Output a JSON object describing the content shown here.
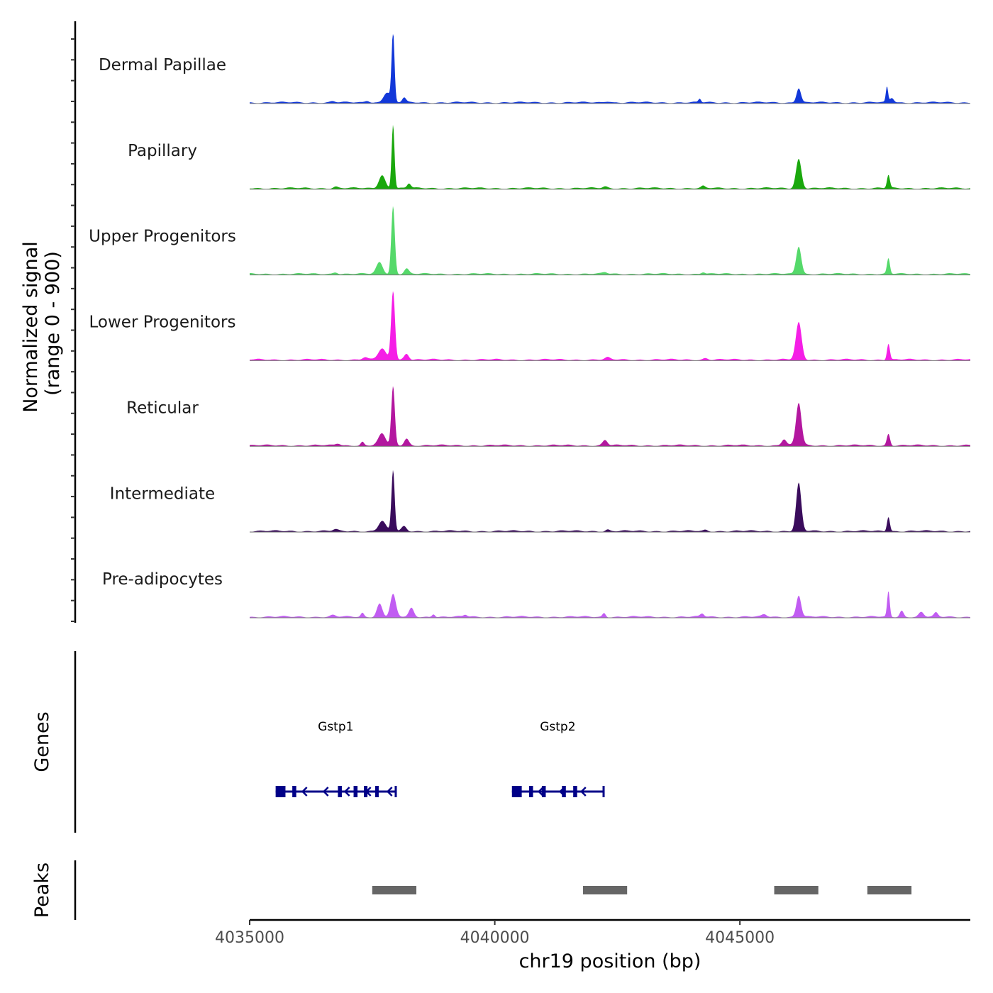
{
  "chart_data": {
    "type": "coverage-track",
    "chromosome": "chr19",
    "xlabel": "chr19 position (bp)",
    "xlim": [
      4035000,
      4049700
    ],
    "xticks": [
      4035000,
      4040000,
      4045000
    ],
    "tick_labels": [
      "4035000",
      "4040000",
      "4045000"
    ],
    "signal_panel": {
      "ylabel_line1": "Normalized signal",
      "ylabel_line2": "(range 0 - 900)",
      "ylim": [
        0,
        900
      ]
    },
    "tracks": [
      {
        "name": "Dermal Papillae",
        "color": "#1238d9",
        "peaks": [
          {
            "pos": 4037925,
            "height": 900,
            "width": 90
          },
          {
            "pos": 4037800,
            "height": 130,
            "width": 220
          },
          {
            "pos": 4038150,
            "height": 60,
            "width": 120
          },
          {
            "pos": 4037400,
            "height": 25,
            "width": 150
          },
          {
            "pos": 4036700,
            "height": 15,
            "width": 150
          },
          {
            "pos": 4044180,
            "height": 45,
            "width": 80
          },
          {
            "pos": 4042300,
            "height": 18,
            "width": 200
          },
          {
            "pos": 4046200,
            "height": 190,
            "width": 140
          },
          {
            "pos": 4048000,
            "height": 200,
            "width": 70
          },
          {
            "pos": 4048100,
            "height": 60,
            "width": 130
          }
        ]
      },
      {
        "name": "Papillary",
        "color": "#1aa80d",
        "peaks": [
          {
            "pos": 4037925,
            "height": 830,
            "width": 90
          },
          {
            "pos": 4037700,
            "height": 170,
            "width": 200
          },
          {
            "pos": 4038250,
            "height": 60,
            "width": 120
          },
          {
            "pos": 4036750,
            "height": 20,
            "width": 150
          },
          {
            "pos": 4042250,
            "height": 20,
            "width": 150
          },
          {
            "pos": 4044250,
            "height": 25,
            "width": 120
          },
          {
            "pos": 4046200,
            "height": 380,
            "width": 170
          },
          {
            "pos": 4048030,
            "height": 170,
            "width": 90
          }
        ]
      },
      {
        "name": "Upper Progenitors",
        "color": "#55d96a",
        "peaks": [
          {
            "pos": 4037925,
            "height": 880,
            "width": 110
          },
          {
            "pos": 4037650,
            "height": 150,
            "width": 200
          },
          {
            "pos": 4038200,
            "height": 70,
            "width": 150
          },
          {
            "pos": 4036750,
            "height": 25,
            "width": 150
          },
          {
            "pos": 4042250,
            "height": 20,
            "width": 150
          },
          {
            "pos": 4044250,
            "height": 25,
            "width": 120
          },
          {
            "pos": 4046200,
            "height": 360,
            "width": 160
          },
          {
            "pos": 4048030,
            "height": 200,
            "width": 90
          }
        ]
      },
      {
        "name": "Lower Progenitors",
        "color": "#f51ee6",
        "peaks": [
          {
            "pos": 4037925,
            "height": 900,
            "width": 120
          },
          {
            "pos": 4037700,
            "height": 140,
            "width": 240
          },
          {
            "pos": 4038200,
            "height": 80,
            "width": 150
          },
          {
            "pos": 4037350,
            "height": 30,
            "width": 150
          },
          {
            "pos": 4042300,
            "height": 25,
            "width": 150
          },
          {
            "pos": 4044300,
            "height": 20,
            "width": 150
          },
          {
            "pos": 4046200,
            "height": 480,
            "width": 180
          },
          {
            "pos": 4048030,
            "height": 210,
            "width": 90
          }
        ]
      },
      {
        "name": "Reticular",
        "color": "#b3179f",
        "peaks": [
          {
            "pos": 4037925,
            "height": 760,
            "width": 110
          },
          {
            "pos": 4037700,
            "height": 150,
            "width": 220
          },
          {
            "pos": 4038200,
            "height": 90,
            "width": 150
          },
          {
            "pos": 4037300,
            "height": 45,
            "width": 100
          },
          {
            "pos": 4036800,
            "height": 25,
            "width": 150
          },
          {
            "pos": 4042250,
            "height": 70,
            "width": 150
          },
          {
            "pos": 4046200,
            "height": 550,
            "width": 170
          },
          {
            "pos": 4045900,
            "height": 80,
            "width": 150
          },
          {
            "pos": 4048030,
            "height": 150,
            "width": 100
          }
        ]
      },
      {
        "name": "Intermediate",
        "color": "#3a0c5c",
        "peaks": [
          {
            "pos": 4037925,
            "height": 790,
            "width": 100
          },
          {
            "pos": 4037700,
            "height": 130,
            "width": 220
          },
          {
            "pos": 4038150,
            "height": 60,
            "width": 150
          },
          {
            "pos": 4036750,
            "height": 20,
            "width": 150
          },
          {
            "pos": 4042300,
            "height": 20,
            "width": 120
          },
          {
            "pos": 4044300,
            "height": 15,
            "width": 120
          },
          {
            "pos": 4046200,
            "height": 620,
            "width": 160
          },
          {
            "pos": 4048030,
            "height": 190,
            "width": 90
          }
        ]
      },
      {
        "name": "Pre-adipocytes",
        "color": "#c15cf2",
        "peaks": [
          {
            "pos": 4037925,
            "height": 290,
            "width": 170
          },
          {
            "pos": 4037650,
            "height": 170,
            "width": 170
          },
          {
            "pos": 4038300,
            "height": 110,
            "width": 150
          },
          {
            "pos": 4037300,
            "height": 50,
            "width": 100
          },
          {
            "pos": 4038750,
            "height": 40,
            "width": 100
          },
          {
            "pos": 4039400,
            "height": 25,
            "width": 120
          },
          {
            "pos": 4036700,
            "height": 20,
            "width": 150
          },
          {
            "pos": 4042230,
            "height": 50,
            "width": 100
          },
          {
            "pos": 4044230,
            "height": 40,
            "width": 120
          },
          {
            "pos": 4045500,
            "height": 30,
            "width": 150
          },
          {
            "pos": 4046200,
            "height": 280,
            "width": 150
          },
          {
            "pos": 4048030,
            "height": 330,
            "width": 80
          },
          {
            "pos": 4048300,
            "height": 80,
            "width": 120
          },
          {
            "pos": 4048700,
            "height": 60,
            "width": 150
          },
          {
            "pos": 4049000,
            "height": 50,
            "width": 120
          }
        ]
      }
    ],
    "genes_panel": {
      "ylabel": "Genes",
      "color": "#000088",
      "genes": [
        {
          "name": "Gstp1",
          "start": 4035530,
          "end": 4037980,
          "strand": "-",
          "exons": [
            [
              4035530,
              4035730
            ],
            [
              4035870,
              4035950
            ],
            [
              4036800,
              4036880
            ],
            [
              4037120,
              4037200
            ],
            [
              4037330,
              4037400
            ],
            [
              4037560,
              4037620
            ]
          ]
        },
        {
          "name": "Gstp2",
          "start": 4040350,
          "end": 4042220,
          "strand": "-",
          "exons": [
            [
              4040350,
              4040550
            ],
            [
              4040700,
              4040780
            ],
            [
              4040960,
              4041040
            ],
            [
              4041370,
              4041450
            ],
            [
              4041600,
              4041680
            ]
          ]
        }
      ]
    },
    "peaks_panel": {
      "ylabel": "Peaks",
      "color": "#666666",
      "regions": [
        [
          4037500,
          4038400
        ],
        [
          4041800,
          4042700
        ],
        [
          4045700,
          4046600
        ],
        [
          4047600,
          4048500
        ]
      ]
    }
  }
}
